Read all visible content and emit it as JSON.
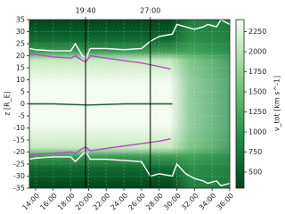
{
  "chart_data": {
    "type": "line",
    "ylabel": "z [R_E]",
    "colorbar_label": "v_tot [km s^-1]",
    "xlim": [
      13.3,
      36
    ],
    "xticks": [
      {
        "value": 14,
        "label": "14:00"
      },
      {
        "value": 16,
        "label": "16:00"
      },
      {
        "value": 18,
        "label": "18:00"
      },
      {
        "value": 20,
        "label": "20:00"
      },
      {
        "value": 22,
        "label": "22:00"
      },
      {
        "value": 24,
        "label": "24:00"
      },
      {
        "value": 26,
        "label": "26:00"
      },
      {
        "value": 28,
        "label": "28:00"
      },
      {
        "value": 30,
        "label": "30:00"
      },
      {
        "value": 32,
        "label": "32:00"
      },
      {
        "value": 34,
        "label": "34:00"
      },
      {
        "value": 36,
        "label": "36:00"
      }
    ],
    "ylim": [
      -35,
      35
    ],
    "yticks": [
      -35,
      -30,
      -25,
      -20,
      -15,
      -10,
      -5,
      0,
      5,
      10,
      15,
      20,
      25,
      30,
      35
    ],
    "clim": [
      300,
      2400
    ],
    "cticks": [
      500,
      750,
      1000,
      1250,
      1500,
      1750,
      2000,
      2250
    ],
    "grid": true,
    "annotations": [
      {
        "x": 19.667,
        "text": "19:40"
      },
      {
        "x": 27,
        "text": "27:00"
      }
    ],
    "series": [
      {
        "color": "#ffffff",
        "x": [
          13.3,
          14,
          16,
          18,
          18.5,
          19.3,
          19.7,
          20.2,
          22,
          24,
          26,
          27,
          28,
          29.5,
          30,
          31,
          32,
          33,
          33.5,
          34.5,
          35,
          36
        ],
        "values": [
          23,
          22.5,
          22,
          22,
          25,
          20,
          19,
          23,
          23,
          22.5,
          23,
          26,
          28,
          29,
          33,
          32,
          31,
          32,
          33,
          32,
          35,
          33
        ]
      },
      {
        "color": "#ffffff",
        "x": [
          13.3,
          14,
          16,
          18,
          18.5,
          19.3,
          19.7,
          20.2,
          22,
          24,
          26,
          27,
          28,
          29.5,
          30,
          31,
          32,
          33,
          33.5,
          34.5,
          35,
          36
        ],
        "values": [
          -23,
          -22.5,
          -22,
          -22,
          -24,
          -21,
          -20,
          -23,
          -23,
          -23.5,
          -24,
          -30,
          -29,
          -30,
          -25,
          -29,
          -31,
          -32,
          -33,
          -32,
          -34,
          -33
        ]
      },
      {
        "color": "#b04fc8",
        "x": [
          13.3,
          14,
          16,
          18,
          18.5,
          19.3,
          19.7,
          20.2,
          22,
          24,
          26,
          28,
          29.3
        ],
        "values": [
          20.5,
          20.5,
          19.5,
          19,
          20,
          18,
          17.5,
          20,
          19,
          18,
          17,
          15.5,
          14.5
        ]
      },
      {
        "color": "#b04fc8",
        "x": [
          13.3,
          14,
          16,
          18,
          18.5,
          19.3,
          19.7,
          20.2,
          22,
          24,
          26,
          28,
          29.3
        ],
        "values": [
          -21,
          -21,
          -20.5,
          -20,
          -20.5,
          -18.5,
          -18,
          -19.5,
          -18.5,
          -17.5,
          -16.5,
          -15.5,
          -14.5
        ]
      },
      {
        "color": "#0b5d2c",
        "x": [
          13.3,
          16,
          20,
          24,
          28,
          29.5
        ],
        "values": [
          0,
          0,
          -0.5,
          0,
          0,
          0
        ]
      }
    ]
  }
}
